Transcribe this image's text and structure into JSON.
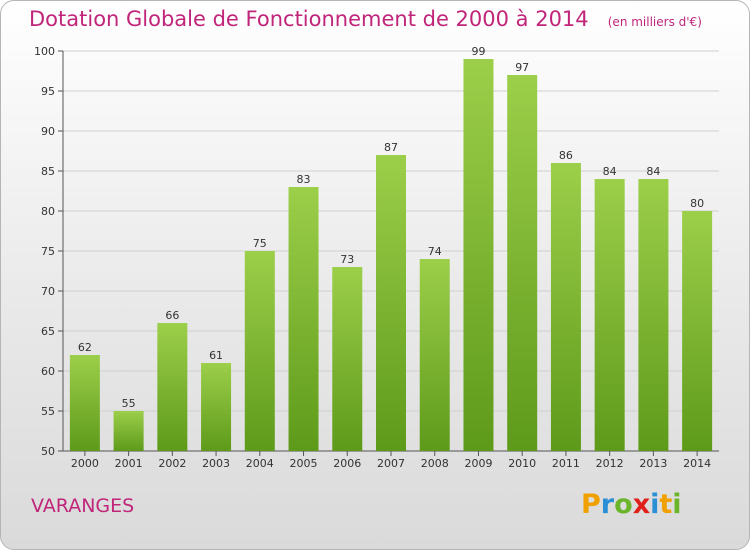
{
  "chart_data": {
    "type": "bar",
    "title": "Dotation Globale de Fonctionnement de 2000 à 2014",
    "subtitle": "(en milliers d'€)",
    "categories": [
      "2000",
      "2001",
      "2002",
      "2003",
      "2004",
      "2005",
      "2006",
      "2007",
      "2008",
      "2009",
      "2010",
      "2011",
      "2012",
      "2013",
      "2014"
    ],
    "values": [
      62,
      55,
      66,
      61,
      75,
      83,
      73,
      87,
      74,
      99,
      97,
      86,
      84,
      84,
      80
    ],
    "ylim": [
      50,
      100
    ],
    "yticks": [
      50,
      55,
      60,
      65,
      70,
      75,
      80,
      85,
      90,
      95,
      100
    ],
    "xlabel": "",
    "ylabel": "",
    "grid": true,
    "bar_color_top": "#9ccf4a",
    "bar_color_bottom": "#5e9a1a"
  },
  "commune": "VARANGES",
  "logo": {
    "text": "Proxiti",
    "colors": [
      "#f0a000",
      "#2b8fd6",
      "#6bb52a",
      "#e0201a"
    ]
  },
  "accent_color": "#c0257a"
}
